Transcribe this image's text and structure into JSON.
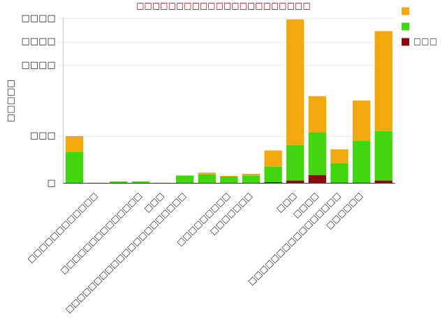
{
  "chart_data": {
    "type": "bar",
    "title": "□□□□□□□□□□□□□□□□□□□□□□",
    "y_label": "□□□□□",
    "categories": [
      null,
      "□□□□□□□□□□□□",
      null,
      "□□□□□□□□□□□□□□",
      "□□□",
      "□□□□□□□□□□□□□□□□□□□□□",
      null,
      "□□□□□□□□□",
      "□□□□□□□",
      null,
      "□□□",
      "□□□□",
      "□□□□□□□□□□□□□□□□",
      "□□□□□□",
      null
    ],
    "series": [
      {
        "name": "□□□",
        "color": "#8b0c0c",
        "values": [
          0,
          0,
          0,
          0,
          0,
          0,
          0,
          0,
          0,
          0.04,
          0.12,
          0.35,
          0.03,
          0.03,
          0.12
        ]
      },
      {
        "name": null,
        "color": "#42d60e",
        "values": [
          1.32,
          0.02,
          0.07,
          0.07,
          0.02,
          0.31,
          0.38,
          0.28,
          0.33,
          0.67,
          1.51,
          1.82,
          0.82,
          1.76,
          2.1
        ]
      },
      {
        "name": null,
        "color": "#f2a90f",
        "values": [
          0.68,
          0,
          0,
          0,
          0,
          0.02,
          0.07,
          0.03,
          0.07,
          0.68,
          5.33,
          1.53,
          0.59,
          1.72,
          4.24
        ]
      }
    ],
    "ylim": [
      0,
      7
    ],
    "yticks": [
      {
        "value": 0,
        "label": "□"
      },
      {
        "value": 2,
        "label": "□□□"
      },
      {
        "value": 5,
        "label": "□□□□"
      },
      {
        "value": 6,
        "label": "□□□□"
      },
      {
        "value": 7,
        "label": "□□□□"
      }
    ],
    "stacked": true,
    "grid": true,
    "legend": "right"
  }
}
